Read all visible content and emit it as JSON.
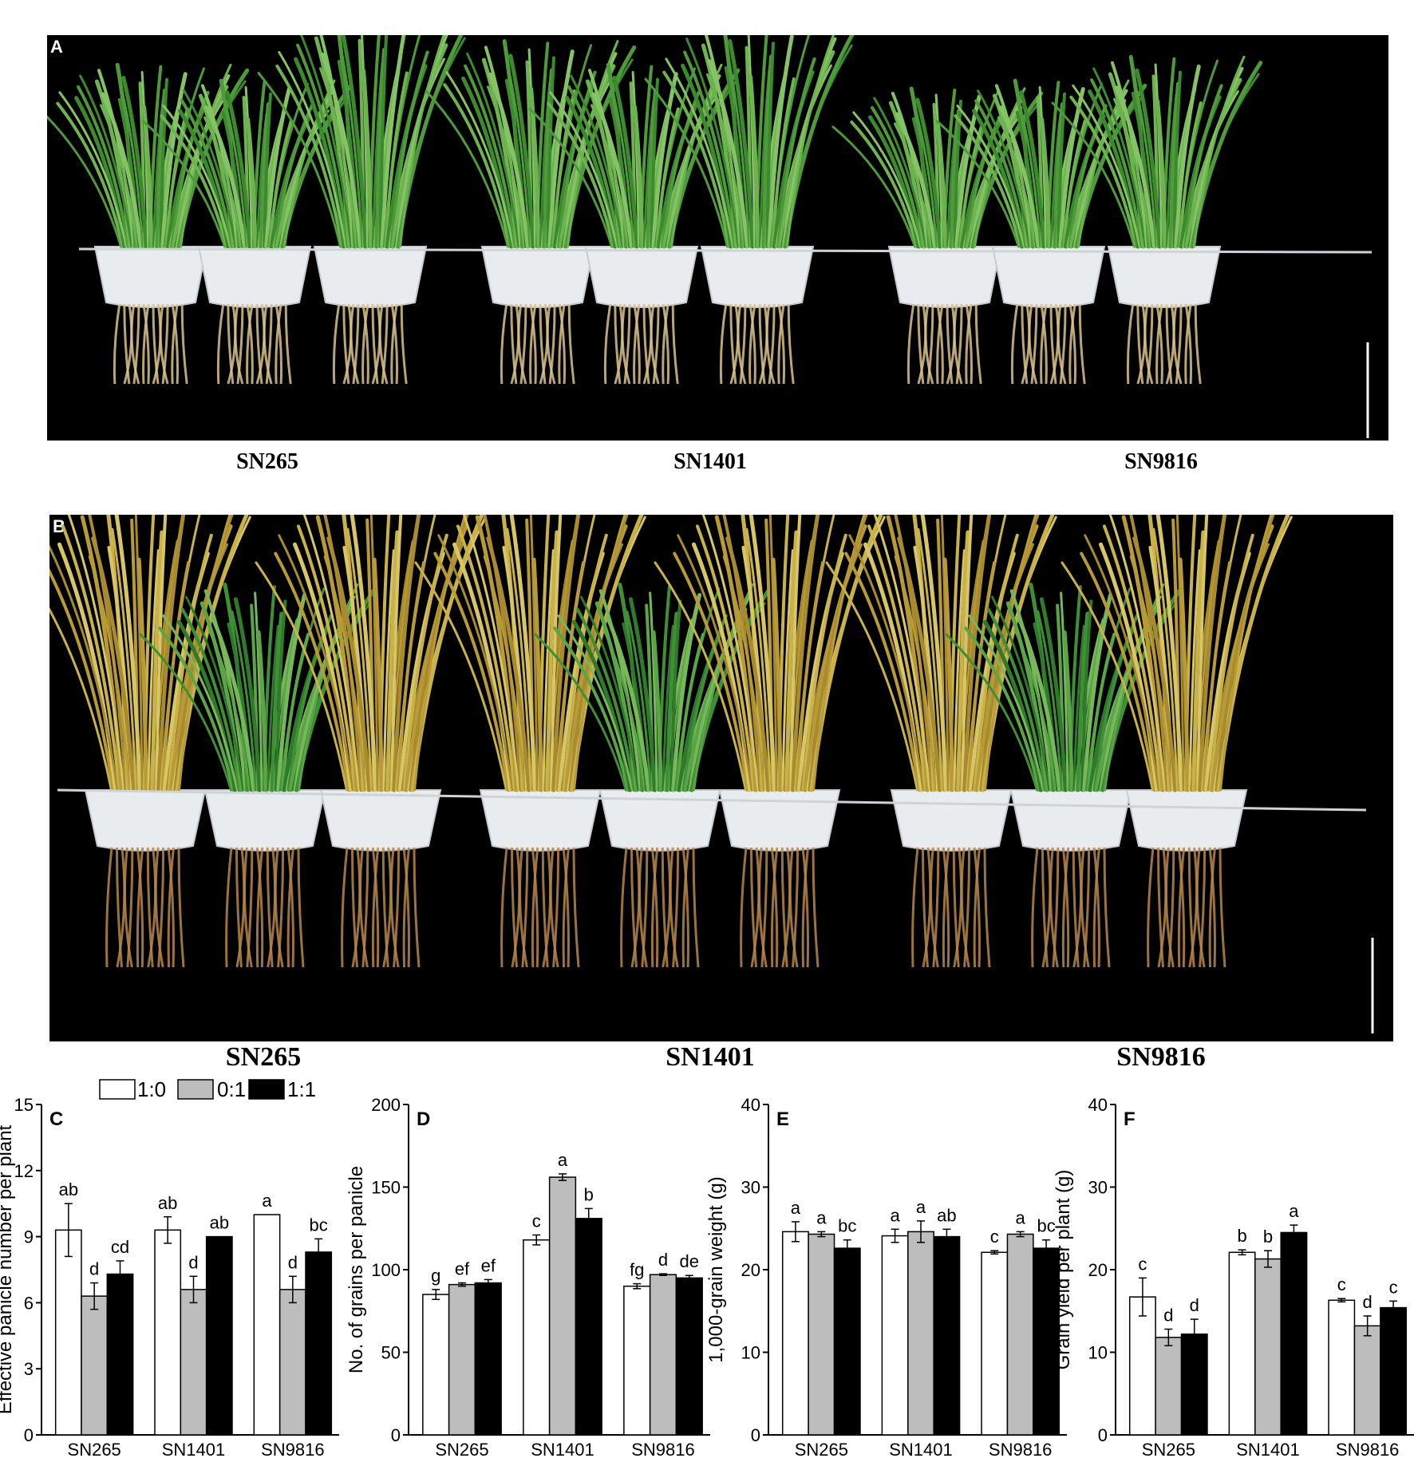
{
  "panels": {
    "A": {
      "letter": "A",
      "cultivars": [
        "SN265",
        "SN1401",
        "SN9816"
      ]
    },
    "B": {
      "letter": "B",
      "cultivars": [
        "SN265",
        "SN1401",
        "SN9816"
      ]
    }
  },
  "legend": [
    {
      "label": "1:0",
      "color": "#ffffff"
    },
    {
      "label": "0:1",
      "color": "#bdbdbd"
    },
    {
      "label": "1:1",
      "color": "#000000"
    }
  ],
  "chart_data": [
    {
      "panel": "C",
      "type": "bar",
      "ylabel": "Effective panicle number per plant",
      "ylim": [
        0,
        15
      ],
      "yticks": [
        0,
        3,
        6,
        9,
        12,
        15
      ],
      "categories": [
        "SN265",
        "SN1401",
        "SN9816"
      ],
      "series": [
        {
          "name": "1:0",
          "values": [
            9.3,
            9.3,
            10.0
          ],
          "errors": [
            1.2,
            0.6,
            0.0
          ],
          "letters": [
            "ab",
            "ab",
            "a"
          ]
        },
        {
          "name": "0:1",
          "values": [
            6.3,
            6.6,
            6.6
          ],
          "errors": [
            0.6,
            0.6,
            0.6
          ],
          "letters": [
            "d",
            "d",
            "d"
          ]
        },
        {
          "name": "1:1",
          "values": [
            7.3,
            9.0,
            8.3
          ],
          "errors": [
            0.6,
            0.0,
            0.6
          ],
          "letters": [
            "cd",
            "ab",
            "bc"
          ]
        }
      ]
    },
    {
      "panel": "D",
      "type": "bar",
      "ylabel": "No. of grains per panicle",
      "ylim": [
        0,
        200
      ],
      "yticks": [
        0,
        50,
        100,
        150,
        200
      ],
      "categories": [
        "SN265",
        "SN1401",
        "SN9816"
      ],
      "series": [
        {
          "name": "1:0",
          "values": [
            85,
            118,
            90
          ],
          "errors": [
            3,
            3,
            1.5
          ],
          "letters": [
            "g",
            "c",
            "fg"
          ]
        },
        {
          "name": "0:1",
          "values": [
            91,
            156,
            97
          ],
          "errors": [
            1,
            2,
            0.5
          ],
          "letters": [
            "ef",
            "a",
            "d"
          ]
        },
        {
          "name": "1:1",
          "values": [
            92,
            131,
            95
          ],
          "errors": [
            2,
            6,
            1.5
          ],
          "letters": [
            "ef",
            "b",
            "de"
          ]
        }
      ]
    },
    {
      "panel": "E",
      "type": "bar",
      "ylabel": "1,000-grain weight (g)",
      "ylim": [
        0,
        40
      ],
      "yticks": [
        0,
        10,
        20,
        30,
        40
      ],
      "categories": [
        "SN265",
        "SN1401",
        "SN9816"
      ],
      "series": [
        {
          "name": "1:0",
          "values": [
            24.6,
            24.1,
            22.1
          ],
          "errors": [
            1.2,
            0.8,
            0.2
          ],
          "letters": [
            "a",
            "a",
            "c"
          ]
        },
        {
          "name": "0:1",
          "values": [
            24.3,
            24.6,
            24.3
          ],
          "errors": [
            0.3,
            1.3,
            0.3
          ],
          "letters": [
            "a",
            "a",
            "a"
          ]
        },
        {
          "name": "1:1",
          "values": [
            22.6,
            24.0,
            22.6
          ],
          "errors": [
            1.0,
            0.9,
            1.0
          ],
          "letters": [
            "bc",
            "ab",
            "bc"
          ]
        }
      ]
    },
    {
      "panel": "F",
      "type": "bar",
      "ylabel": "Grain yield per plant (g)",
      "ylim": [
        0,
        40
      ],
      "yticks": [
        0,
        10,
        20,
        30,
        40
      ],
      "categories": [
        "SN265",
        "SN1401",
        "SN9816"
      ],
      "series": [
        {
          "name": "1:0",
          "values": [
            16.7,
            22.1,
            16.3
          ],
          "errors": [
            2.3,
            0.3,
            0.2
          ],
          "letters": [
            "c",
            "b",
            "c"
          ]
        },
        {
          "name": "0:1",
          "values": [
            11.8,
            21.3,
            13.2
          ],
          "errors": [
            1.0,
            1.0,
            1.2
          ],
          "letters": [
            "d",
            "b",
            "d"
          ]
        },
        {
          "name": "1:1",
          "values": [
            12.2,
            24.5,
            15.4
          ],
          "errors": [
            1.8,
            0.9,
            0.8
          ],
          "letters": [
            "d",
            "a",
            "c"
          ]
        }
      ]
    }
  ]
}
